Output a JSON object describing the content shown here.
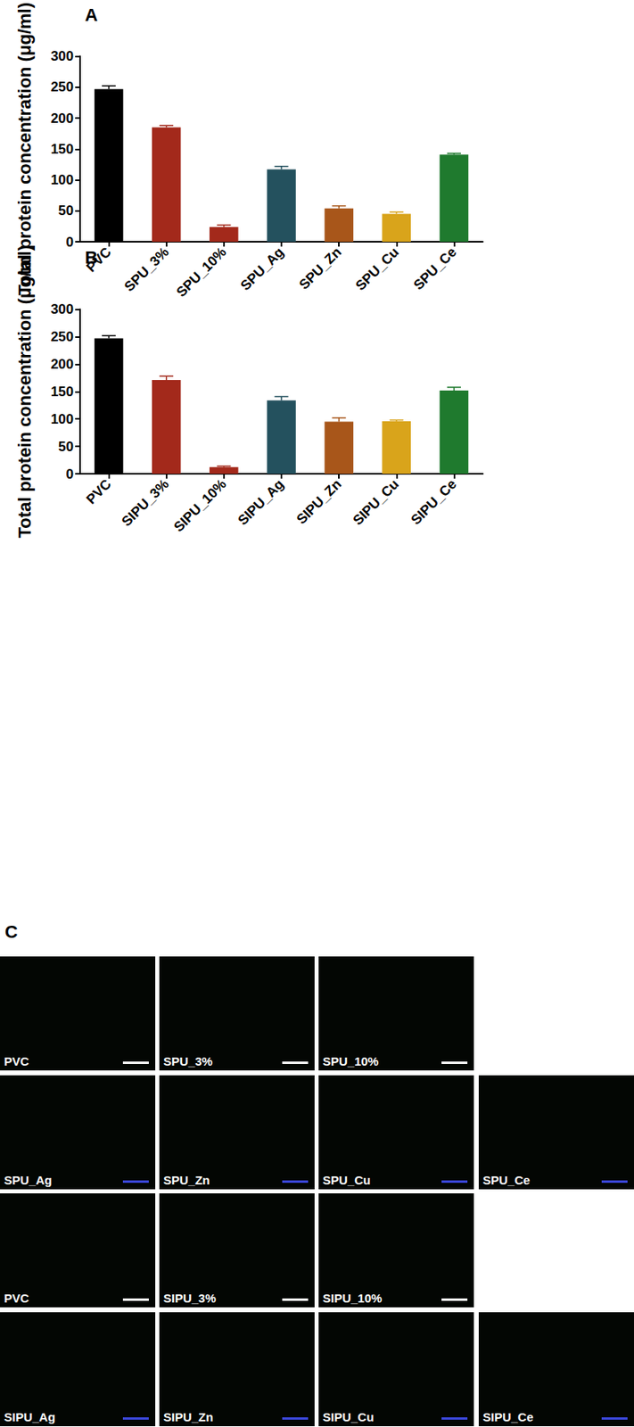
{
  "chart_data": [
    {
      "type": "bar",
      "title": "A",
      "y_label": "Total protein concentration (μg/ml)",
      "categories": [
        "PVC",
        "SPU_3%",
        "SPU_10%",
        "SPU_Ag",
        "SPU_Zn",
        "SPU_Cu",
        "SPU_Ce"
      ],
      "values": [
        247,
        185,
        24,
        117,
        54,
        45,
        141
      ],
      "errors": [
        5,
        3,
        3,
        5,
        4,
        3,
        2
      ],
      "colors": [
        "#000000",
        "#a3291b",
        "#a3291b",
        "#24515e",
        "#a8561a",
        "#d9a41b",
        "#1f7a2e"
      ],
      "ylim": [
        0,
        300
      ],
      "yticks": [
        0,
        50,
        100,
        150,
        200,
        250,
        300
      ],
      "grid": false
    },
    {
      "type": "bar",
      "title": "B",
      "y_label": "Total protein concentration (μg/ml)",
      "categories": [
        "PVC",
        "SIPU_3%",
        "SIPU_10%",
        "SIPU_Ag",
        "SIPU_Zn",
        "SIPU_Cu",
        "SIPU_Ce"
      ],
      "values": [
        247,
        171,
        12,
        134,
        95,
        96,
        152
      ],
      "errors": [
        5,
        7,
        2,
        7,
        7,
        2,
        6
      ],
      "colors": [
        "#000000",
        "#a3291b",
        "#a3291b",
        "#24515e",
        "#a8561a",
        "#d9a41b",
        "#1f7a2e"
      ],
      "ylim": [
        0,
        300
      ],
      "yticks": [
        0,
        50,
        100,
        150,
        200,
        250,
        300
      ],
      "grid": false
    }
  ],
  "figure_c": {
    "label": "C",
    "rows": [
      [
        "PVC",
        "SPU_3%",
        "SPU_10%"
      ],
      [
        "SPU_Ag",
        "SPU_Zn",
        "SPU_Cu",
        "SPU_Ce"
      ],
      [
        "PVC",
        "SIPU_3%",
        "SIPU_10%"
      ],
      [
        "SIPU_Ag",
        "SIPU_Zn",
        "SIPU_Cu",
        "SIPU_Ce"
      ]
    ]
  }
}
